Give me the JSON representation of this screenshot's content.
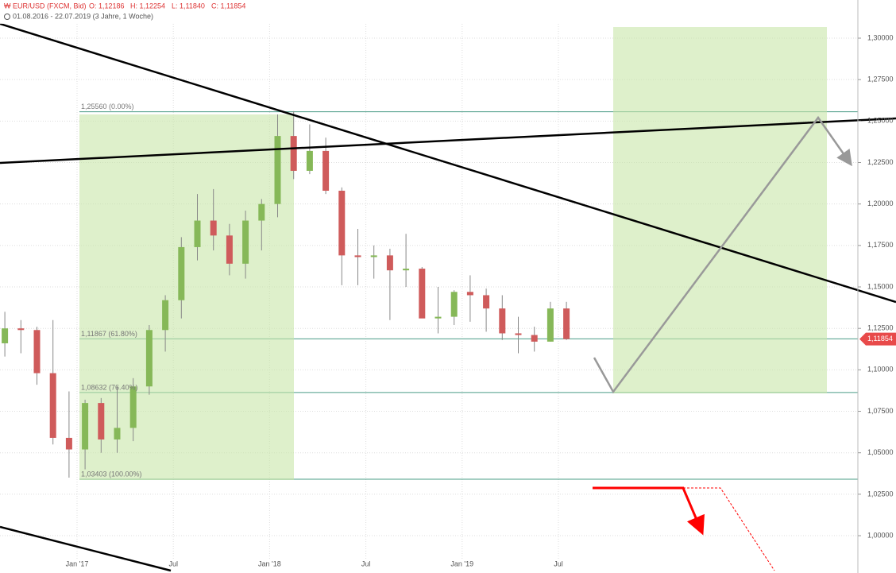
{
  "chart_data": {
    "type": "candlestick",
    "header": {
      "symbol": "EUR/USD (FXCM, Bid)",
      "open": "O: 1,12186",
      "high": "H: 1,12254",
      "low": "L: 1,11840",
      "close": "C: 1,11854",
      "range": "01.08.2016 - 22.07.2019 (3 Jahre, 1 Woche)"
    },
    "categories": [
      null,
      null,
      null,
      null,
      null,
      "Jan '17",
      null,
      null,
      null,
      null,
      null,
      "Jul",
      null,
      null,
      null,
      null,
      null,
      "Jan '18",
      null,
      null,
      null,
      null,
      null,
      "Jul",
      null,
      null,
      null,
      null,
      null,
      "Jan '19",
      null,
      null,
      null,
      null,
      null,
      "Jul"
    ],
    "open": [
      1.116,
      1.125,
      1.124,
      1.098,
      1.059,
      1.052,
      1.08,
      1.058,
      1.065,
      1.09,
      1.124,
      1.142,
      1.174,
      1.19,
      1.181,
      1.164,
      1.19,
      1.2,
      1.241,
      1.22,
      1.232,
      1.208,
      1.169,
      1.168,
      1.169,
      1.16,
      1.161,
      1.131,
      1.132,
      1.147,
      1.145,
      1.137,
      1.122,
      1.121,
      1.117,
      1.137
    ],
    "high": [
      1.135,
      1.13,
      1.126,
      1.13,
      1.087,
      1.082,
      1.083,
      1.09,
      1.095,
      1.127,
      1.145,
      1.18,
      1.206,
      1.209,
      1.188,
      1.196,
      1.203,
      1.254,
      1.256,
      1.248,
      1.24,
      1.21,
      1.185,
      1.175,
      1.173,
      1.182,
      1.162,
      1.15,
      1.148,
      1.157,
      1.149,
      1.145,
      1.132,
      1.126,
      1.141,
      1.141
    ],
    "low": [
      1.108,
      1.11,
      1.091,
      1.055,
      1.035,
      1.04,
      1.05,
      1.05,
      1.057,
      1.085,
      1.111,
      1.131,
      1.166,
      1.172,
      1.157,
      1.155,
      1.172,
      1.192,
      1.215,
      1.218,
      1.206,
      1.151,
      1.151,
      1.155,
      1.13,
      1.15,
      1.132,
      1.122,
      1.127,
      1.129,
      1.123,
      1.118,
      1.11,
      1.111,
      1.117,
      1.118
    ],
    "close": [
      1.125,
      1.124,
      1.098,
      1.059,
      1.052,
      1.08,
      1.058,
      1.065,
      1.09,
      1.124,
      1.142,
      1.174,
      1.19,
      1.181,
      1.164,
      1.19,
      1.2,
      1.241,
      1.22,
      1.232,
      1.208,
      1.169,
      1.168,
      1.169,
      1.16,
      1.161,
      1.131,
      1.132,
      1.147,
      1.145,
      1.137,
      1.122,
      1.121,
      1.117,
      1.137,
      1.11854
    ],
    "up_color": "#86b858",
    "down_color": "#cf5b5b",
    "fib_levels": [
      {
        "value": 1.2556,
        "label": "1,25560 (0.00%)"
      },
      {
        "value": 1.11867,
        "label": "1,11867 (61.80%)"
      },
      {
        "value": 1.08632,
        "label": "1,08632 (76.40%)"
      },
      {
        "value": 1.03403,
        "label": "1,03403 (100.00%)"
      }
    ],
    "last_price": {
      "value": 1.11854,
      "label": "1,11854"
    },
    "ylim": [
      0.9775,
      1.323
    ],
    "yticks": [
      {
        "value": 1.0,
        "label": "1,00000"
      },
      {
        "value": 1.025,
        "label": "1,02500"
      },
      {
        "value": 1.05,
        "label": "1,05000"
      },
      {
        "value": 1.075,
        "label": "1,07500"
      },
      {
        "value": 1.1,
        "label": "1,10000"
      },
      {
        "value": 1.125,
        "label": "1,12500"
      },
      {
        "value": 1.15,
        "label": "1,15000"
      },
      {
        "value": 1.175,
        "label": "1,17500"
      },
      {
        "value": 1.2,
        "label": "1,20000"
      },
      {
        "value": 1.225,
        "label": "1,22500"
      },
      {
        "value": 1.25,
        "label": "1,25000"
      },
      {
        "value": 1.275,
        "label": "1,27500"
      },
      {
        "value": 1.3,
        "label": "1,30000"
      }
    ],
    "grid": true
  }
}
